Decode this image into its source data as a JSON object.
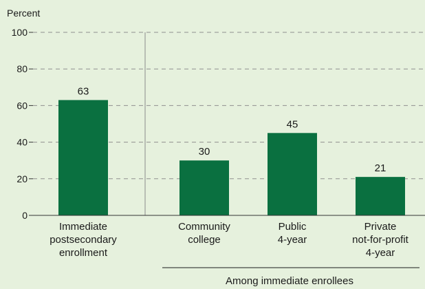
{
  "chart_data": {
    "type": "bar",
    "ylabel": "Percent",
    "ylim": [
      0,
      100
    ],
    "yticks": [
      0,
      20,
      40,
      60,
      80,
      100
    ],
    "grid": true,
    "bar_color": "#0a7040",
    "categories": [
      [
        "Immediate",
        "postsecondary",
        "enrollment"
      ],
      [
        "Community",
        "college"
      ],
      [
        "Public",
        "4-year"
      ],
      [
        "Private",
        "not-for-profit",
        "4-year"
      ]
    ],
    "values": [
      63,
      30,
      45,
      21
    ],
    "data_labels": [
      "63",
      "30",
      "45",
      "21"
    ],
    "group_label": "Among immediate enrollees"
  }
}
